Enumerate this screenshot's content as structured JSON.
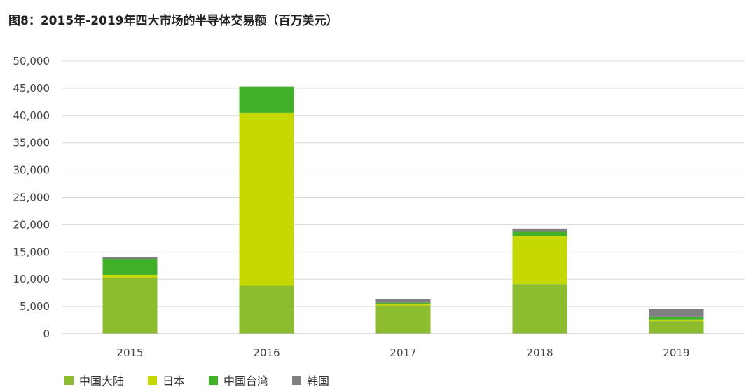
{
  "title": "图8：2015年-2019年四大市场的半导体交易额（百万美元）",
  "chart_data": {
    "type": "bar",
    "stacked": true,
    "title": "图8：2015年-2019年四大市场的半导体交易额（百万美元）",
    "xlabel": "",
    "ylabel": "",
    "categories": [
      "2015",
      "2016",
      "2017",
      "2018",
      "2019"
    ],
    "ylim": [
      0,
      50000
    ],
    "yticks": [
      0,
      5000,
      10000,
      15000,
      20000,
      25000,
      30000,
      35000,
      40000,
      45000,
      50000
    ],
    "ytick_labels": [
      "0",
      "5,000",
      "10,000",
      "15,000",
      "20,000",
      "25,000",
      "30,000",
      "35,000",
      "40,000",
      "45,000",
      "50,000"
    ],
    "grid": true,
    "legend_position": "bottom-left",
    "series": [
      {
        "name": "中国大陆",
        "color": "#8cbd2f",
        "values": [
          10200,
          8800,
          5200,
          9100,
          2300
        ]
      },
      {
        "name": "日本",
        "color": "#c5d800",
        "values": [
          600,
          31700,
          300,
          8800,
          300
        ]
      },
      {
        "name": "中国台湾",
        "color": "#43b02a",
        "values": [
          2900,
          4800,
          200,
          800,
          500
        ]
      },
      {
        "name": "韩国",
        "color": "#7f7f7f",
        "values": [
          400,
          0,
          600,
          600,
          1400
        ]
      }
    ]
  }
}
